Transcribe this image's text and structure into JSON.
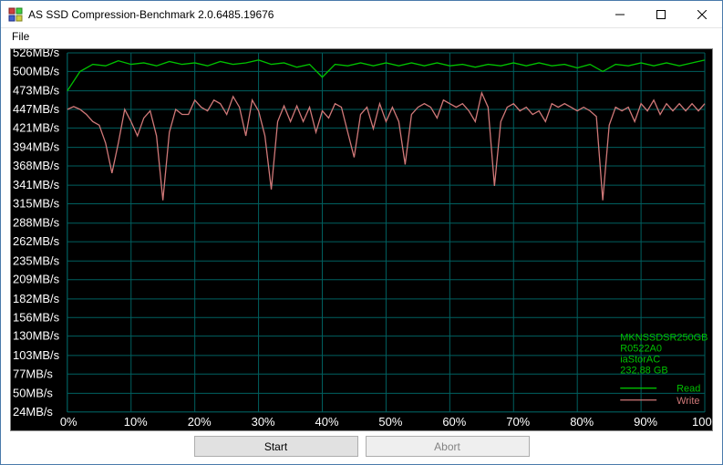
{
  "window": {
    "title": "AS SSD Compression-Benchmark 2.0.6485.19676"
  },
  "menu": {
    "file": "File"
  },
  "chart": {
    "type": "line",
    "background_color": "#000000",
    "grid_color": "#006060",
    "text_color": "#ffffff",
    "y_axis": {
      "unit": "MB/s",
      "ticks": [
        24,
        50,
        77,
        103,
        130,
        156,
        182,
        209,
        235,
        262,
        288,
        315,
        341,
        368,
        394,
        421,
        447,
        473,
        500,
        526
      ],
      "min": 24,
      "max": 526
    },
    "x_axis": {
      "ticks": [
        "0%",
        "10%",
        "20%",
        "30%",
        "40%",
        "50%",
        "60%",
        "70%",
        "80%",
        "90%",
        "100%"
      ],
      "min": 0,
      "max": 100
    },
    "series": {
      "read": {
        "label": "Read",
        "color": "#00c000",
        "points": [
          [
            0,
            473
          ],
          [
            2,
            500
          ],
          [
            4,
            510
          ],
          [
            6,
            508
          ],
          [
            8,
            515
          ],
          [
            10,
            510
          ],
          [
            12,
            512
          ],
          [
            14,
            508
          ],
          [
            16,
            514
          ],
          [
            18,
            510
          ],
          [
            20,
            512
          ],
          [
            22,
            508
          ],
          [
            24,
            514
          ],
          [
            26,
            510
          ],
          [
            28,
            512
          ],
          [
            30,
            516
          ],
          [
            32,
            510
          ],
          [
            34,
            512
          ],
          [
            36,
            506
          ],
          [
            38,
            510
          ],
          [
            40,
            492
          ],
          [
            42,
            510
          ],
          [
            44,
            508
          ],
          [
            46,
            512
          ],
          [
            48,
            508
          ],
          [
            50,
            512
          ],
          [
            52,
            508
          ],
          [
            54,
            512
          ],
          [
            56,
            508
          ],
          [
            58,
            512
          ],
          [
            60,
            508
          ],
          [
            62,
            510
          ],
          [
            64,
            506
          ],
          [
            66,
            510
          ],
          [
            68,
            508
          ],
          [
            70,
            512
          ],
          [
            72,
            508
          ],
          [
            74,
            512
          ],
          [
            76,
            508
          ],
          [
            78,
            510
          ],
          [
            80,
            505
          ],
          [
            82,
            510
          ],
          [
            84,
            500
          ],
          [
            86,
            510
          ],
          [
            88,
            508
          ],
          [
            90,
            512
          ],
          [
            92,
            508
          ],
          [
            94,
            512
          ],
          [
            96,
            508
          ],
          [
            98,
            512
          ],
          [
            100,
            516
          ]
        ]
      },
      "write": {
        "label": "Write",
        "color": "#d07878",
        "points": [
          [
            0,
            447
          ],
          [
            1,
            451
          ],
          [
            2,
            447
          ],
          [
            3,
            440
          ],
          [
            4,
            430
          ],
          [
            5,
            425
          ],
          [
            6,
            400
          ],
          [
            7,
            358
          ],
          [
            8,
            400
          ],
          [
            9,
            447
          ],
          [
            10,
            430
          ],
          [
            11,
            410
          ],
          [
            12,
            435
          ],
          [
            13,
            445
          ],
          [
            14,
            410
          ],
          [
            15,
            320
          ],
          [
            16,
            415
          ],
          [
            17,
            447
          ],
          [
            18,
            440
          ],
          [
            19,
            440
          ],
          [
            20,
            460
          ],
          [
            21,
            450
          ],
          [
            22,
            445
          ],
          [
            23,
            460
          ],
          [
            24,
            455
          ],
          [
            25,
            440
          ],
          [
            26,
            465
          ],
          [
            27,
            450
          ],
          [
            28,
            410
          ],
          [
            29,
            460
          ],
          [
            30,
            445
          ],
          [
            31,
            410
          ],
          [
            32,
            335
          ],
          [
            33,
            430
          ],
          [
            34,
            452
          ],
          [
            35,
            430
          ],
          [
            36,
            452
          ],
          [
            37,
            430
          ],
          [
            38,
            450
          ],
          [
            39,
            415
          ],
          [
            40,
            445
          ],
          [
            41,
            435
          ],
          [
            42,
            455
          ],
          [
            43,
            450
          ],
          [
            44,
            415
          ],
          [
            45,
            380
          ],
          [
            46,
            440
          ],
          [
            47,
            450
          ],
          [
            48,
            420
          ],
          [
            49,
            455
          ],
          [
            50,
            430
          ],
          [
            51,
            450
          ],
          [
            52,
            430
          ],
          [
            53,
            370
          ],
          [
            54,
            440
          ],
          [
            55,
            450
          ],
          [
            56,
            455
          ],
          [
            57,
            450
          ],
          [
            58,
            435
          ],
          [
            59,
            460
          ],
          [
            60,
            455
          ],
          [
            61,
            450
          ],
          [
            62,
            455
          ],
          [
            63,
            445
          ],
          [
            64,
            430
          ],
          [
            65,
            470
          ],
          [
            66,
            450
          ],
          [
            67,
            340
          ],
          [
            68,
            430
          ],
          [
            69,
            450
          ],
          [
            70,
            455
          ],
          [
            71,
            445
          ],
          [
            72,
            450
          ],
          [
            73,
            440
          ],
          [
            74,
            445
          ],
          [
            75,
            430
          ],
          [
            76,
            455
          ],
          [
            77,
            450
          ],
          [
            78,
            455
          ],
          [
            79,
            450
          ],
          [
            80,
            445
          ],
          [
            81,
            450
          ],
          [
            82,
            445
          ],
          [
            83,
            437
          ],
          [
            84,
            320
          ],
          [
            85,
            425
          ],
          [
            86,
            450
          ],
          [
            87,
            445
          ],
          [
            88,
            450
          ],
          [
            89,
            430
          ],
          [
            90,
            455
          ],
          [
            91,
            445
          ],
          [
            92,
            460
          ],
          [
            93,
            440
          ],
          [
            94,
            455
          ],
          [
            95,
            445
          ],
          [
            96,
            455
          ],
          [
            97,
            445
          ],
          [
            98,
            455
          ],
          [
            99,
            445
          ],
          [
            100,
            455
          ]
        ]
      }
    },
    "info_box": {
      "lines": [
        "MKNSSDSR250GB",
        "R0522A0",
        "iaStorAC",
        "232,88 GB"
      ],
      "text_color": "#00c000"
    },
    "legend": {
      "read": "Read",
      "write": "Write"
    }
  },
  "buttons": {
    "start": "Start",
    "abort": "Abort"
  }
}
